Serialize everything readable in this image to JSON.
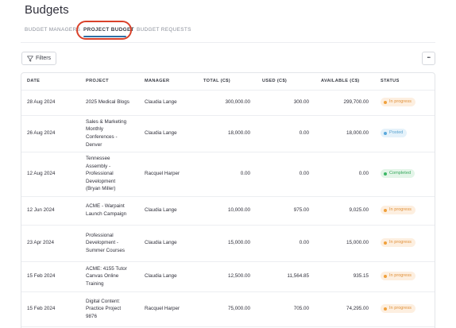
{
  "page": {
    "title": "Budgets"
  },
  "tabs": [
    {
      "label": "BUDGET MANAGERS",
      "active": false
    },
    {
      "label": "PROJECT BUDGET",
      "active": true
    },
    {
      "label": "BUDGET REQUESTS",
      "active": false
    }
  ],
  "toolbar": {
    "filters_label": "Filters",
    "more_label": "•••"
  },
  "colors": {
    "accent": "#2c6fa5",
    "highlight_ring": "#d9412a",
    "in_progress": "#f0a13c",
    "posted": "#5aa9dc",
    "completed": "#3cb866"
  },
  "table": {
    "headers": [
      "DATE",
      "PROJECT",
      "MANAGER",
      "TOTAL (C$)",
      "USED (C$)",
      "AVAILABLE (C$)",
      "STATUS"
    ],
    "rows": [
      {
        "date": "28 Aug 2024",
        "project": "2025 Medical Blogs",
        "manager": "Claudia Lange",
        "total": "300,000.00",
        "used": "300.00",
        "available": "299,700.00",
        "status": "In progress",
        "status_type": "progress"
      },
      {
        "date": "26 Aug 2024",
        "project": "Sales & Marketing Monthly Conferences - Denver",
        "manager": "Claudia Lange",
        "total": "18,000.00",
        "used": "0.00",
        "available": "18,000.00",
        "status": "Posted",
        "status_type": "posted"
      },
      {
        "date": "12 Aug 2024",
        "project": "Tennessee Assembly - Professional Development (Bryan Miller)",
        "manager": "Racquel Harper",
        "total": "0.00",
        "used": "0.00",
        "available": "0.00",
        "status": "Completed",
        "status_type": "completed"
      },
      {
        "date": "12 Jun 2024",
        "project": "ACME - Warpaint Launch Campaign",
        "manager": "Claudia Lange",
        "total": "10,000.00",
        "used": "975.00",
        "available": "9,025.00",
        "status": "In progress",
        "status_type": "progress"
      },
      {
        "date": "23 Apr 2024",
        "project": "Professional Development - Summer Courses",
        "manager": "Claudia Lange",
        "total": "15,000.00",
        "used": "0.00",
        "available": "15,000.00",
        "status": "In progress",
        "status_type": "progress"
      },
      {
        "date": "15 Feb 2024",
        "project": "ACME: 4155 Tutor Canvas Online Training",
        "manager": "Claudia Lange",
        "total": "12,500.00",
        "used": "11,564.85",
        "available": "935.15",
        "status": "In progress",
        "status_type": "progress"
      },
      {
        "date": "15 Feb 2024",
        "project": "Digital Content: Practice Project 9876",
        "manager": "Racquel Harper",
        "total": "75,000.00",
        "used": "705.00",
        "available": "74,295.00",
        "status": "In progress",
        "status_type": "progress"
      }
    ]
  }
}
